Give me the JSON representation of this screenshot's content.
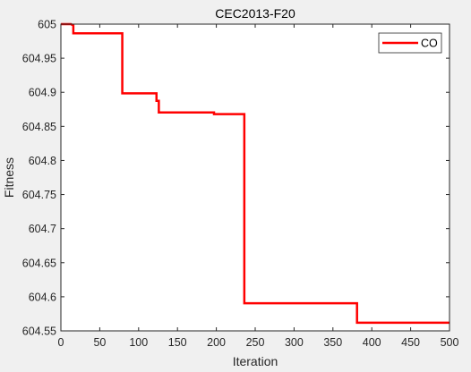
{
  "chart_data": {
    "type": "line",
    "title": "CEC2013-F20",
    "xlabel": "Iteration",
    "ylabel": "Fitness",
    "xlim": [
      0,
      500
    ],
    "ylim": [
      604.55,
      605
    ],
    "xticks": [
      0,
      50,
      100,
      150,
      200,
      250,
      300,
      350,
      400,
      450,
      500
    ],
    "xtick_labels": [
      "0",
      "50",
      "100",
      "150",
      "200",
      "250",
      "300",
      "350",
      "400",
      "450",
      "500"
    ],
    "yticks": [
      604.55,
      604.6,
      604.65,
      604.7,
      604.75,
      604.8,
      604.85,
      604.9,
      604.95,
      605
    ],
    "ytick_labels": [
      "604.55",
      "604.6",
      "604.65",
      "604.7",
      "604.75",
      "604.8",
      "604.85",
      "604.9",
      "604.95",
      "605"
    ],
    "grid": false,
    "legend_position": "top-right",
    "series": [
      {
        "name": "CO",
        "color": "#ff0000",
        "x": [
          0,
          13,
          16,
          16,
          79,
          79,
          123,
          123,
          126,
          126,
          197,
          197,
          236,
          236,
          381,
          381,
          500
        ],
        "y": [
          605,
          605,
          604.998,
          604.9865,
          604.9865,
          604.8985,
          604.8985,
          604.8875,
          604.8875,
          604.8705,
          604.8705,
          604.868,
          604.868,
          604.5905,
          604.5905,
          604.562,
          604.562
        ]
      }
    ]
  }
}
